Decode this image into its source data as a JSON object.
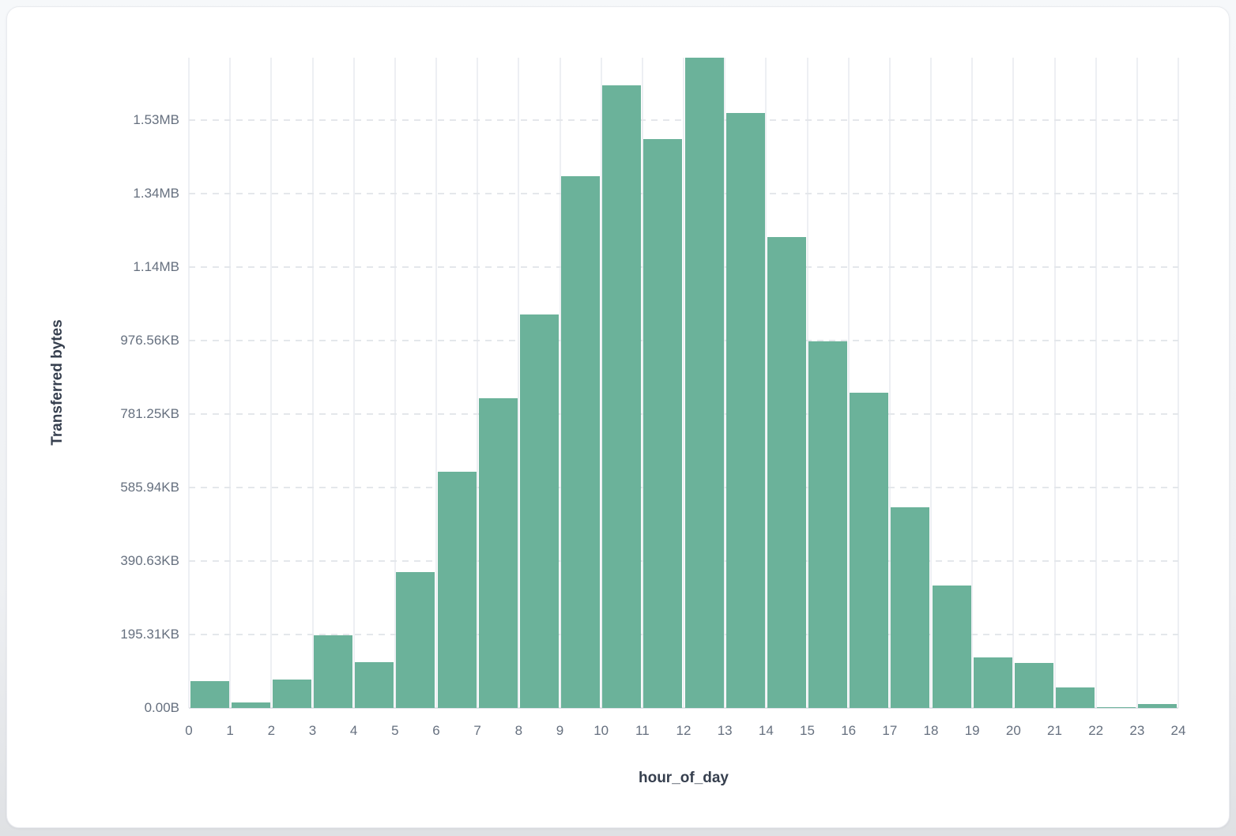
{
  "page": {
    "background": "#eef0f3",
    "card_background": "#ffffff"
  },
  "chart_data": {
    "type": "bar",
    "title": "",
    "xlabel": "hour_of_day",
    "ylabel": "Transferred bytes",
    "categories": [
      "0",
      "1",
      "2",
      "3",
      "4",
      "5",
      "6",
      "7",
      "8",
      "9",
      "10",
      "11",
      "12",
      "13",
      "14",
      "15",
      "16",
      "17",
      "18",
      "19",
      "20",
      "21",
      "22",
      "23"
    ],
    "values": [
      73000,
      15000,
      77000,
      198000,
      125000,
      369000,
      643000,
      842000,
      1071000,
      1447000,
      1695000,
      1548000,
      1770000,
      1620000,
      1282000,
      998000,
      858000,
      546000,
      334000,
      138000,
      123000,
      56000,
      3000,
      11000
    ],
    "unit": "bytes",
    "x_tick_labels": [
      "0",
      "1",
      "2",
      "3",
      "4",
      "5",
      "6",
      "7",
      "8",
      "9",
      "10",
      "11",
      "12",
      "13",
      "14",
      "15",
      "16",
      "17",
      "18",
      "19",
      "20",
      "21",
      "22",
      "23",
      "24"
    ],
    "y_ticks": [
      {
        "value": 0,
        "label": "0.00B"
      },
      {
        "value": 200000,
        "label": "195.31KB"
      },
      {
        "value": 400000,
        "label": "390.63KB"
      },
      {
        "value": 600000,
        "label": "585.94KB"
      },
      {
        "value": 800000,
        "label": "781.25KB"
      },
      {
        "value": 1000000,
        "label": "976.56KB"
      },
      {
        "value": 1200000,
        "label": "1.14MB"
      },
      {
        "value": 1400000,
        "label": "1.34MB"
      },
      {
        "value": 1600000,
        "label": "1.53MB"
      }
    ],
    "ylim": [
      0,
      1770000
    ],
    "xlim": [
      0,
      24
    ],
    "grid": {
      "vertical": "solid",
      "horizontal": "dashed",
      "legend": "none"
    },
    "colors": {
      "bar": "#6bb29a",
      "vertical_grid": "#edeff3",
      "horizontal_grid": "#e4e7eb",
      "baseline": "#e0e3e8",
      "tick_text": "#66707f",
      "axis_title_text": "#363f4e"
    }
  }
}
